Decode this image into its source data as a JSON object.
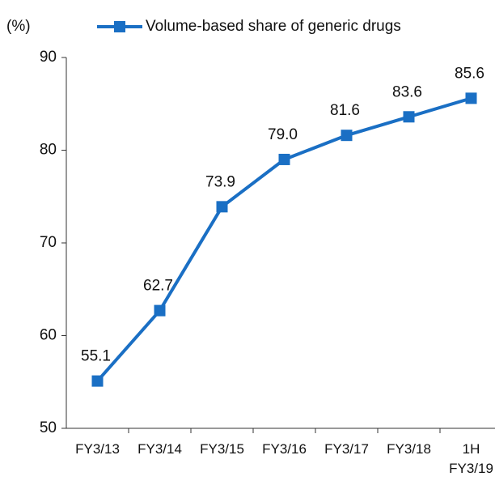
{
  "chart_data": {
    "type": "line",
    "y_label": "(%)",
    "categories": [
      "FY3/13",
      "FY3/14",
      "FY3/15",
      "FY3/16",
      "FY3/17",
      "FY3/18",
      "1H\nFY3/19"
    ],
    "series": [
      {
        "name": "Volume-based share of generic drugs",
        "color": "#1a6fc4",
        "values": [
          55.1,
          62.7,
          73.9,
          79.0,
          81.6,
          83.6,
          85.6
        ],
        "value_labels": [
          "55.1",
          "62.7",
          "73.9",
          "79.0",
          "81.6",
          "83.6",
          "85.6"
        ]
      }
    ],
    "ylim": [
      50,
      90
    ],
    "yticks": [
      50,
      60,
      70,
      80,
      90
    ],
    "grid": false,
    "legend": "top"
  }
}
